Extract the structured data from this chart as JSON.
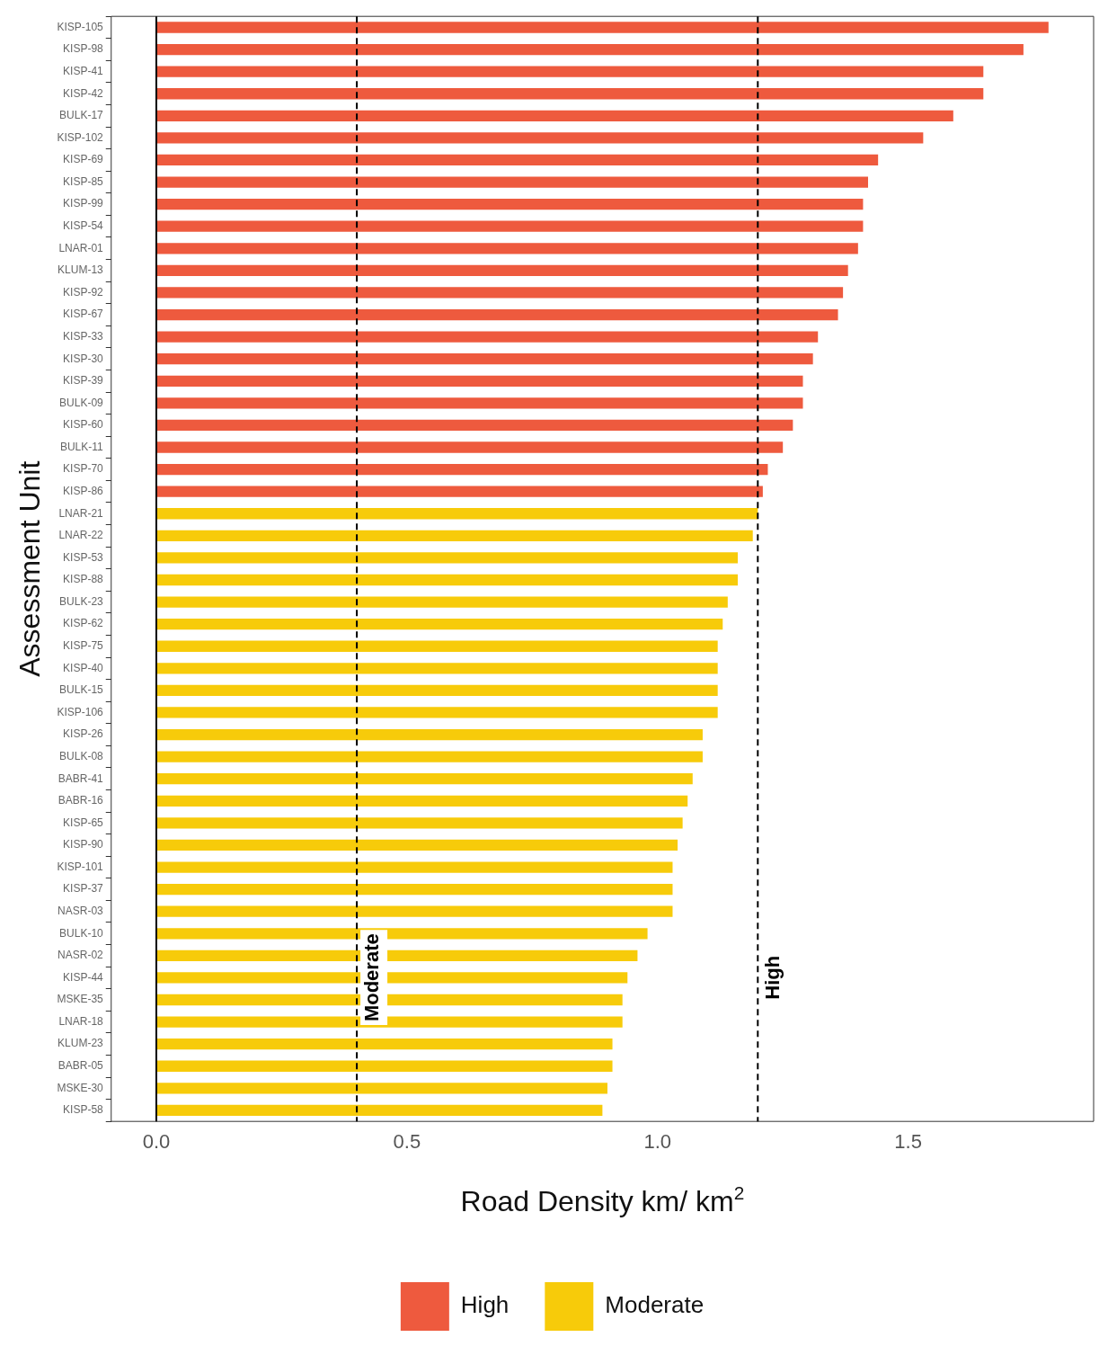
{
  "chart_data": {
    "type": "bar",
    "orientation": "horizontal",
    "xlabel": "Road Density km/ km$^{2}$",
    "ylabel": "Assessment Unit",
    "categories": [
      "KISP-105",
      "KISP-98",
      "KISP-41",
      "KISP-42",
      "BULK-17",
      "KISP-102",
      "KISP-69",
      "KISP-85",
      "KISP-99",
      "KISP-54",
      "LNAR-01",
      "KLUM-13",
      "KISP-92",
      "KISP-67",
      "KISP-33",
      "KISP-30",
      "KISP-39",
      "BULK-09",
      "KISP-60",
      "BULK-11",
      "KISP-70",
      "KISP-86",
      "LNAR-21",
      "LNAR-22",
      "KISP-53",
      "KISP-88",
      "BULK-23",
      "KISP-62",
      "KISP-75",
      "KISP-40",
      "BULK-15",
      "KISP-106",
      "KISP-26",
      "BULK-08",
      "BABR-41",
      "BABR-16",
      "KISP-65",
      "KISP-90",
      "KISP-101",
      "KISP-37",
      "NASR-03",
      "BULK-10",
      "NASR-02",
      "KISP-44",
      "MSKE-35",
      "LNAR-18",
      "KLUM-23",
      "BABR-05",
      "MSKE-30",
      "KISP-58"
    ],
    "series": [
      {
        "name": "High",
        "color": "#ee5a3e",
        "values": [
          1.78,
          1.73,
          1.65,
          1.65,
          1.59,
          1.53,
          1.44,
          1.42,
          1.41,
          1.41,
          1.4,
          1.38,
          1.37,
          1.36,
          1.32,
          1.31,
          1.29,
          1.29,
          1.27,
          1.25,
          1.22,
          1.21,
          null,
          null,
          null,
          null,
          null,
          null,
          null,
          null,
          null,
          null,
          null,
          null,
          null,
          null,
          null,
          null,
          null,
          null,
          null,
          null,
          null,
          null,
          null,
          null,
          null,
          null,
          null,
          null
        ]
      },
      {
        "name": "Moderate",
        "color": "#f7cb0a",
        "values": [
          null,
          null,
          null,
          null,
          null,
          null,
          null,
          null,
          null,
          null,
          null,
          null,
          null,
          null,
          null,
          null,
          null,
          null,
          null,
          null,
          null,
          null,
          1.2,
          1.19,
          1.16,
          1.16,
          1.14,
          1.13,
          1.12,
          1.12,
          1.12,
          1.12,
          1.09,
          1.09,
          1.07,
          1.06,
          1.05,
          1.04,
          1.03,
          1.03,
          1.03,
          0.98,
          0.96,
          0.94,
          0.93,
          0.93,
          0.91,
          0.91,
          0.9,
          0.89
        ]
      }
    ],
    "xlim": [
      -0.09,
      1.87
    ],
    "xticks": [
      {
        "value": 0,
        "label": "0.0"
      },
      0.5,
      {
        "value": 1,
        "label": "1.0"
      },
      1.5
    ],
    "ref_lines": [
      {
        "axis": "x",
        "value": 0,
        "color": "#000000",
        "line_style": "solid"
      },
      {
        "axis": "x",
        "value": 0.4,
        "label": "Moderate",
        "color": "#000000",
        "line_style": "dashed"
      },
      {
        "axis": "x",
        "value": 1.2,
        "label": "High",
        "color": "#000000",
        "line_style": "dashed"
      }
    ],
    "grid": false,
    "legend": "bottom"
  }
}
